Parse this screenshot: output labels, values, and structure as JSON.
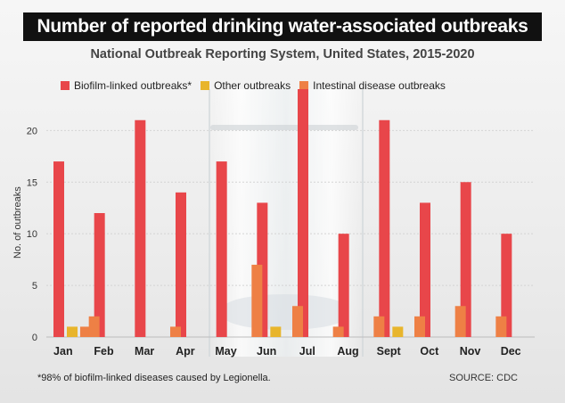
{
  "title": "Number of reported drinking water-associated outbreaks",
  "subtitle": "National Outbreak Reporting System, United States, 2015-2020",
  "footnote": "*98% of biofilm-linked diseases caused by Legionella.",
  "source": "SOURCE: CDC",
  "colors": {
    "biofilm": "#e8464a",
    "other": "#e8b52c",
    "intestinal": "#ee8045",
    "title_bg": "#111111"
  },
  "chart_data": {
    "type": "bar",
    "title": "Number of reported drinking water-associated outbreaks",
    "subtitle": "National Outbreak Reporting System, United States, 2015-2020",
    "ylabel": "No. of outbreaks",
    "xlabel": "",
    "ylim": [
      0,
      24
    ],
    "yticks": [
      0,
      5,
      10,
      15,
      20
    ],
    "grid": true,
    "legend_position": "top",
    "categories": [
      "Jan",
      "Feb",
      "Mar",
      "Apr",
      "May",
      "Jun",
      "Jul",
      "Aug",
      "Sept",
      "Oct",
      "Nov",
      "Dec"
    ],
    "series": [
      {
        "name": "Biofilm-linked outbreaks*",
        "key": "biofilm",
        "values": [
          17,
          12,
          21,
          14,
          17,
          13,
          24,
          10,
          21,
          13,
          15,
          10
        ]
      },
      {
        "name": "Other outbreaks",
        "key": "other",
        "values": [
          1,
          0,
          0,
          0,
          0,
          1,
          0,
          0,
          1,
          0,
          0,
          0
        ]
      },
      {
        "name": "Intestinal disease outbreaks",
        "key": "intestinal",
        "values": [
          1,
          2,
          0,
          1,
          0,
          7,
          3,
          1,
          2,
          2,
          3,
          2
        ]
      }
    ]
  }
}
